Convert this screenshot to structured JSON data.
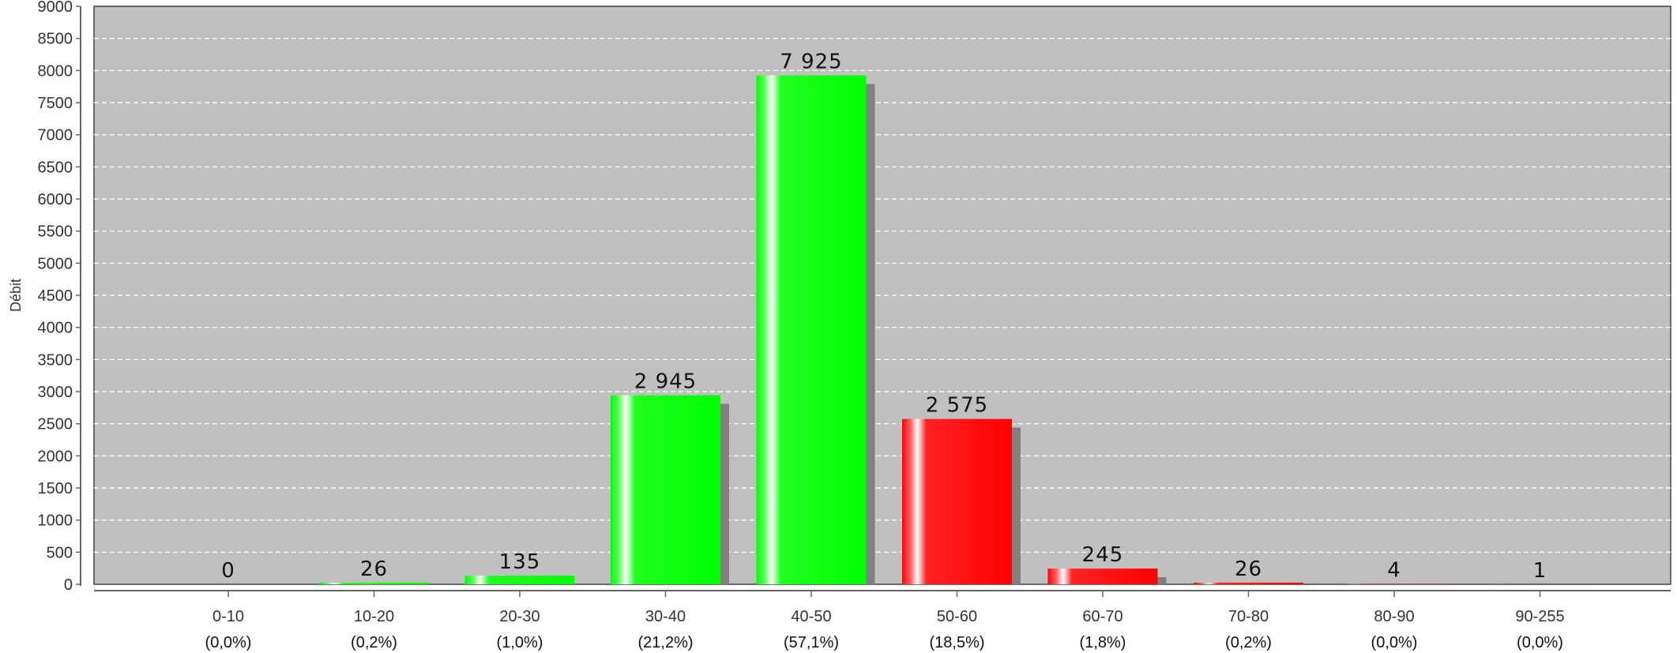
{
  "chart_data": {
    "type": "bar",
    "ylabel": "Débit",
    "ylim": [
      0,
      9000
    ],
    "yticks": [
      0,
      500,
      1000,
      1500,
      2000,
      2500,
      3000,
      3500,
      4000,
      4500,
      5000,
      5500,
      6000,
      6500,
      7000,
      7500,
      8000,
      8500,
      9000
    ],
    "grid": true,
    "categories": [
      "0-10",
      "10-20",
      "20-30",
      "30-40",
      "40-50",
      "50-60",
      "60-70",
      "70-80",
      "80-90",
      "90-255"
    ],
    "values": [
      0,
      26,
      135,
      2945,
      7925,
      2575,
      245,
      26,
      4,
      1
    ],
    "value_labels": [
      "0",
      "26",
      "135",
      "2 945",
      "7 925",
      "2 575",
      "245",
      "26",
      "4",
      "1"
    ],
    "percent_labels": [
      "(0,0%)",
      "(0,2%)",
      "(1,0%)",
      "(21,2%)",
      "(57,1%)",
      "(18,5%)",
      "(1,8%)",
      "(0,2%)",
      "(0,0%)",
      "(0,0%)"
    ],
    "bar_colors": [
      "#00ff00",
      "#00ff00",
      "#00ff00",
      "#00ff00",
      "#00ff00",
      "#ff0000",
      "#ff0000",
      "#ff0000",
      "#ff0000",
      "#ff0000"
    ],
    "colors": {
      "plot_background": "#c0c0c0",
      "grid": "#ffffff",
      "shadow": "#808080",
      "positive": "#00ff00",
      "negative": "#ff0000"
    }
  }
}
